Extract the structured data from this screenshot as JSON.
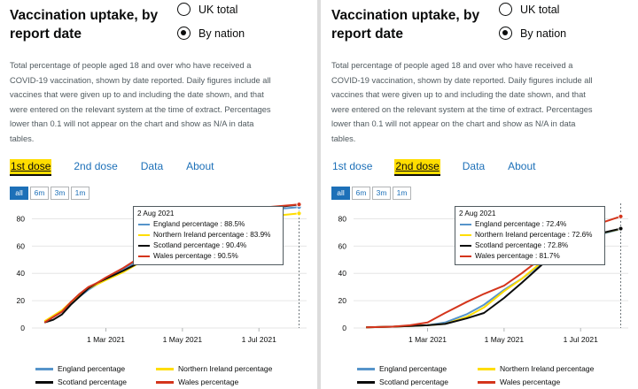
{
  "title_line1": "Vaccination uptake, by",
  "title_line2": "report date",
  "radio_options": [
    "UK total",
    "By nation"
  ],
  "selected_radio": "By nation",
  "description": "Total percentage of people aged 18 and over who have received a COVID-19 vaccination, shown by date reported. Daily figures include all vaccines that were given up to and including the date shown, and that were entered on the relevant system at the time of extract. Percentages lower than 0.1 will not appear on the chart and show as N/A in data tables.",
  "tabs": [
    "1st dose",
    "2nd dose",
    "Data",
    "About"
  ],
  "ranges": [
    "all",
    "6m",
    "3m",
    "1m"
  ],
  "active_range": "all",
  "colors": {
    "England percentage": "#5694ca",
    "Northern Ireland percentage": "#ffdd00",
    "Scotland percentage": "#0b0c0c",
    "Wales percentage": "#d4351c",
    "link": "#1d70b8",
    "focus": "#ffdd00"
  },
  "legend": [
    "England percentage",
    "Northern Ireland percentage",
    "Scotland percentage",
    "Wales percentage"
  ],
  "panels": [
    {
      "active_tab": "1st dose",
      "tooltip": {
        "date": "2 Aug 2021",
        "rows": [
          {
            "series": "England percentage",
            "text": "England percentage : 88.5%"
          },
          {
            "series": "Northern Ireland percentage",
            "text": "Northern Ireland percentage : 83.9%"
          },
          {
            "series": "Scotland percentage",
            "text": "Scotland percentage : 90.4%"
          },
          {
            "series": "Wales percentage",
            "text": "Wales percentage : 90.5%"
          }
        ]
      }
    },
    {
      "active_tab": "2nd dose",
      "tooltip": {
        "date": "2 Aug 2021",
        "rows": [
          {
            "series": "England percentage",
            "text": "England percentage : 72.4%"
          },
          {
            "series": "Northern Ireland percentage",
            "text": "Northern Ireland percentage : 72.6%"
          },
          {
            "series": "Scotland percentage",
            "text": "Scotland percentage : 72.8%"
          },
          {
            "series": "Wales percentage",
            "text": "Wales percentage : 81.7%"
          }
        ]
      }
    }
  ],
  "chart_data": [
    {
      "type": "line",
      "x_axis": "date",
      "xlim": [
        "2021-01-01",
        "2021-08-08"
      ],
      "ylim": [
        0,
        90
      ],
      "y_ticks": [
        0,
        20,
        40,
        60,
        80
      ],
      "x_ticks": [
        {
          "date": "2021-03-01",
          "label": "1 Mar 2021"
        },
        {
          "date": "2021-05-01",
          "label": "1 May 2021"
        },
        {
          "date": "2021-07-01",
          "label": "1 Jul 2021"
        }
      ],
      "grid": true,
      "legend": "bottom",
      "hover_date": "2021-08-02",
      "series": [
        {
          "name": "England percentage",
          "x": [
            "2021-01-11",
            "2021-01-18",
            "2021-01-25",
            "2021-02-01",
            "2021-02-08",
            "2021-02-15",
            "2021-02-22",
            "2021-03-01",
            "2021-03-15",
            "2021-04-01",
            "2021-04-15",
            "2021-05-01",
            "2021-06-01",
            "2021-07-01",
            "2021-08-02"
          ],
          "y": [
            4,
            8,
            12,
            18,
            23,
            28,
            32,
            36,
            43,
            52,
            57,
            62,
            77,
            86,
            88.5
          ]
        },
        {
          "name": "Northern Ireland percentage",
          "x": [
            "2021-01-11",
            "2021-01-18",
            "2021-01-25",
            "2021-02-01",
            "2021-02-08",
            "2021-02-15",
            "2021-02-22",
            "2021-03-01",
            "2021-03-15",
            "2021-04-01",
            "2021-04-15",
            "2021-05-01",
            "2021-06-01",
            "2021-07-01",
            "2021-08-02"
          ],
          "y": [
            5,
            9,
            13,
            19,
            24,
            29,
            32,
            35,
            41,
            50,
            55,
            60,
            73,
            81,
            83.9
          ]
        },
        {
          "name": "Scotland percentage",
          "x": [
            "2021-01-11",
            "2021-01-18",
            "2021-01-25",
            "2021-02-01",
            "2021-02-08",
            "2021-02-15",
            "2021-02-22",
            "2021-03-01",
            "2021-03-15",
            "2021-04-01",
            "2021-04-15",
            "2021-05-01",
            "2021-06-01",
            "2021-07-01",
            "2021-08-02"
          ],
          "y": [
            4,
            6,
            10,
            17,
            23,
            29,
            33,
            36,
            42,
            50,
            56,
            62,
            78,
            87,
            90.4
          ]
        },
        {
          "name": "Wales percentage",
          "x": [
            "2021-01-11",
            "2021-01-18",
            "2021-01-25",
            "2021-02-01",
            "2021-02-08",
            "2021-02-15",
            "2021-02-22",
            "2021-03-01",
            "2021-03-15",
            "2021-04-01",
            "2021-04-15",
            "2021-05-01",
            "2021-06-01",
            "2021-07-01",
            "2021-08-02"
          ],
          "y": [
            4,
            8,
            12,
            19,
            25,
            30,
            33,
            37,
            44,
            54,
            59,
            64,
            80,
            88,
            90.5
          ]
        }
      ]
    },
    {
      "type": "line",
      "x_axis": "date",
      "xlim": [
        "2021-01-01",
        "2021-08-08"
      ],
      "ylim": [
        0,
        90
      ],
      "y_ticks": [
        0,
        20,
        40,
        60,
        80
      ],
      "x_ticks": [
        {
          "date": "2021-03-01",
          "label": "1 Mar 2021"
        },
        {
          "date": "2021-05-01",
          "label": "1 May 2021"
        },
        {
          "date": "2021-07-01",
          "label": "1 Jul 2021"
        }
      ],
      "grid": true,
      "legend": "bottom",
      "hover_date": "2021-08-02",
      "series": [
        {
          "name": "England percentage",
          "x": [
            "2021-01-11",
            "2021-02-01",
            "2021-02-15",
            "2021-03-01",
            "2021-03-15",
            "2021-04-01",
            "2021-04-15",
            "2021-05-01",
            "2021-05-15",
            "2021-06-01",
            "2021-07-01",
            "2021-08-02"
          ],
          "y": [
            0.5,
            1,
            1.5,
            2,
            4,
            10,
            17,
            28,
            36,
            48,
            65,
            72.4
          ]
        },
        {
          "name": "Northern Ireland percentage",
          "x": [
            "2021-01-11",
            "2021-02-01",
            "2021-02-15",
            "2021-03-01",
            "2021-03-15",
            "2021-04-01",
            "2021-04-15",
            "2021-05-01",
            "2021-05-15",
            "2021-06-01",
            "2021-07-01",
            "2021-08-02"
          ],
          "y": [
            0.5,
            1,
            1.5,
            2,
            3,
            8,
            15,
            27,
            36,
            49,
            66,
            72.6
          ]
        },
        {
          "name": "Scotland percentage",
          "x": [
            "2021-01-11",
            "2021-02-01",
            "2021-02-15",
            "2021-03-01",
            "2021-03-15",
            "2021-04-01",
            "2021-04-15",
            "2021-05-01",
            "2021-05-15",
            "2021-06-01",
            "2021-07-01",
            "2021-08-02"
          ],
          "y": [
            0.5,
            1,
            1.5,
            2,
            3,
            7,
            11,
            22,
            33,
            47,
            66,
            72.8
          ]
        },
        {
          "name": "Wales percentage",
          "x": [
            "2021-01-11",
            "2021-02-01",
            "2021-02-15",
            "2021-03-01",
            "2021-03-15",
            "2021-04-01",
            "2021-04-15",
            "2021-05-01",
            "2021-05-15",
            "2021-06-01",
            "2021-07-01",
            "2021-08-02"
          ],
          "y": [
            0.5,
            1,
            2,
            4,
            11,
            19,
            25,
            31,
            40,
            52,
            72,
            81.7
          ]
        }
      ]
    }
  ]
}
